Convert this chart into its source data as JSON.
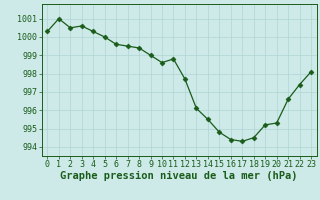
{
  "x": [
    0,
    1,
    2,
    3,
    4,
    5,
    6,
    7,
    8,
    9,
    10,
    11,
    12,
    13,
    14,
    15,
    16,
    17,
    18,
    19,
    20,
    21,
    22,
    23
  ],
  "y": [
    1000.3,
    1001.0,
    1000.5,
    1000.6,
    1000.3,
    1000.0,
    999.6,
    999.5,
    999.4,
    999.0,
    998.6,
    998.8,
    997.7,
    996.1,
    995.5,
    994.8,
    994.4,
    994.3,
    994.5,
    995.2,
    995.3,
    996.6,
    997.4,
    998.1
  ],
  "line_color": "#1a5c1a",
  "marker": "D",
  "marker_size": 2.5,
  "bg_color": "#cdeae9",
  "grid_color": "#b0d4d4",
  "xlabel": "Graphe pression niveau de la mer (hPa)",
  "xlabel_fontsize": 7.5,
  "xlabel_fontweight": "bold",
  "tick_fontsize": 6,
  "ylim": [
    993.5,
    1001.8
  ],
  "xlim": [
    -0.5,
    23.5
  ],
  "yticks": [
    994,
    995,
    996,
    997,
    998,
    999,
    1000,
    1001
  ],
  "xticks": [
    0,
    1,
    2,
    3,
    4,
    5,
    6,
    7,
    8,
    9,
    10,
    11,
    12,
    13,
    14,
    15,
    16,
    17,
    18,
    19,
    20,
    21,
    22,
    23
  ]
}
